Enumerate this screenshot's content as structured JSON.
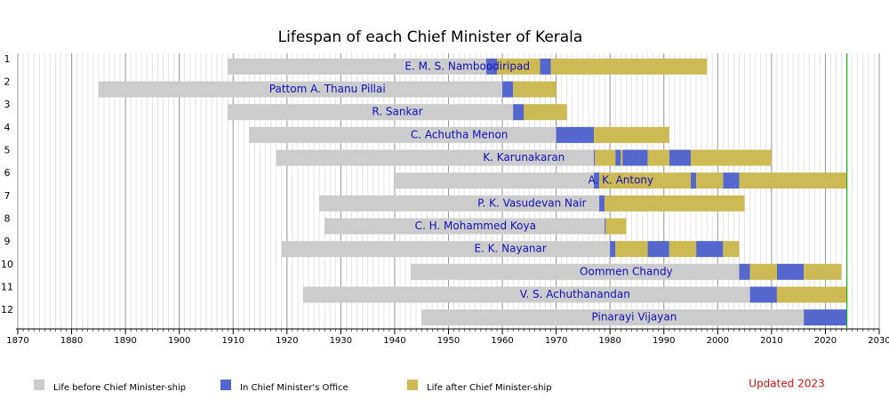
{
  "chart_data": {
    "type": "timeline",
    "title": "Lifespan of each Chief Minister of Kerala",
    "note": "Updated 2023",
    "xlim": [
      1870,
      2030
    ],
    "xticks": [
      1870,
      1880,
      1890,
      1900,
      1910,
      1920,
      1930,
      1940,
      1950,
      1960,
      1970,
      1980,
      1990,
      2000,
      2010,
      2020,
      2030
    ],
    "minor_step": 1,
    "today": 2024,
    "legend": {
      "before": {
        "name": "Life before Chief Minister-ship",
        "color": "#cccccc"
      },
      "in_office": {
        "name": "In Chief Minister's Office",
        "color": "#5566cc"
      },
      "after": {
        "name": "Life after Chief Minister-ship",
        "color": "#ccbb55"
      }
    },
    "rows": [
      {
        "label": "1",
        "name": "E. M. S. Namboodiripad",
        "before": [
          [
            1909,
            1957
          ]
        ],
        "in_office": [
          [
            1957,
            1959
          ],
          [
            1967,
            1969
          ]
        ],
        "after": [
          [
            1959,
            1967
          ],
          [
            1969,
            1998
          ]
        ]
      },
      {
        "label": "2",
        "name": "Pattom A. Thanu Pillai",
        "before": [
          [
            1885,
            1960
          ]
        ],
        "in_office": [
          [
            1960,
            1962
          ]
        ],
        "after": [
          [
            1962,
            1970
          ]
        ]
      },
      {
        "label": "3",
        "name": "R. Sankar",
        "before": [
          [
            1909,
            1962
          ]
        ],
        "in_office": [
          [
            1962,
            1964
          ]
        ],
        "after": [
          [
            1964,
            1972
          ]
        ]
      },
      {
        "label": "4",
        "name": "C. Achutha Menon",
        "before": [
          [
            1913,
            1970
          ]
        ],
        "in_office": [
          [
            1970,
            1977
          ]
        ],
        "after": [
          [
            1977,
            1991
          ]
        ]
      },
      {
        "label": "5",
        "name": "K. Karunakaran",
        "before": [
          [
            1918,
            1977
          ]
        ],
        "in_office": [
          [
            1977,
            1977.2
          ],
          [
            1981,
            1982
          ],
          [
            1982.3,
            1987
          ],
          [
            1991,
            1995
          ]
        ],
        "after": [
          [
            1977.2,
            1981
          ],
          [
            1982,
            1982.3
          ],
          [
            1987,
            1991
          ],
          [
            1995,
            2010
          ]
        ]
      },
      {
        "label": "6",
        "name": "A. K. Antony",
        "before": [
          [
            1940,
            1977
          ]
        ],
        "in_office": [
          [
            1977,
            1978
          ],
          [
            1995,
            1996
          ],
          [
            2001,
            2004
          ]
        ],
        "after": [
          [
            1978,
            1995
          ],
          [
            1996,
            2001
          ],
          [
            2004,
            2024
          ]
        ]
      },
      {
        "label": "7",
        "name": "P. K. Vasudevan Nair",
        "before": [
          [
            1926,
            1978
          ]
        ],
        "in_office": [
          [
            1978,
            1979
          ]
        ],
        "after": [
          [
            1979,
            2005
          ]
        ]
      },
      {
        "label": "8",
        "name": "C. H. Mohammed Koya",
        "before": [
          [
            1927,
            1979
          ]
        ],
        "in_office": [
          [
            1979,
            1979.2
          ]
        ],
        "after": [
          [
            1979.2,
            1983
          ]
        ]
      },
      {
        "label": "9",
        "name": "E. K. Nayanar",
        "before": [
          [
            1919,
            1980
          ]
        ],
        "in_office": [
          [
            1980,
            1981
          ],
          [
            1987,
            1991
          ],
          [
            1996,
            2001
          ]
        ],
        "after": [
          [
            1981,
            1987
          ],
          [
            1991,
            1996
          ],
          [
            2001,
            2004
          ]
        ]
      },
      {
        "label": "10",
        "name": "Oommen Chandy",
        "before": [
          [
            1943,
            2004
          ]
        ],
        "in_office": [
          [
            2004,
            2006
          ],
          [
            2011,
            2016
          ]
        ],
        "after": [
          [
            2006,
            2011
          ],
          [
            2016,
            2023
          ]
        ]
      },
      {
        "label": "11",
        "name": "V. S. Achuthanandan",
        "before": [
          [
            1923,
            2006
          ]
        ],
        "in_office": [
          [
            2006,
            2011
          ]
        ],
        "after": [
          [
            2011,
            2024
          ]
        ]
      },
      {
        "label": "12",
        "name": "Pinarayi Vijayan",
        "before": [
          [
            1945,
            2016
          ]
        ],
        "in_office": [
          [
            2016,
            2024
          ]
        ],
        "after": []
      }
    ]
  }
}
